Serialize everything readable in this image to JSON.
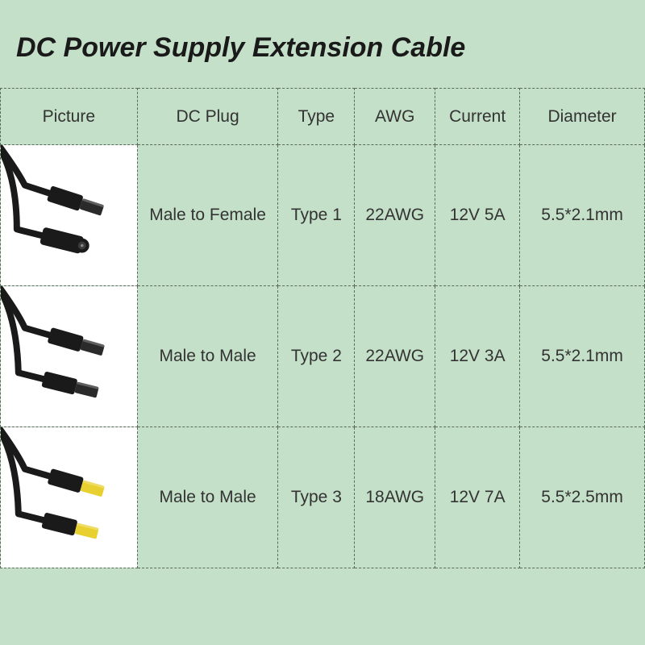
{
  "title": "DC Power Supply Extension Cable",
  "title_fontsize": 34,
  "background_color": "#c4e0c8",
  "border_color": "#5a6b5c",
  "text_color": "#333333",
  "header_fontsize": 21,
  "cell_fontsize": 21,
  "columns": {
    "picture": "Picture",
    "plug": "DC Plug",
    "type": "Type",
    "awg": "AWG",
    "current": "Current",
    "diameter": "Diameter"
  },
  "rows": [
    {
      "picture_type": "male-female",
      "plug": "Male to Female",
      "type": "Type 1",
      "awg": "22AWG",
      "current": "12V 5A",
      "diameter": "5.5*2.1mm",
      "tip_color": "#2a2a2a"
    },
    {
      "picture_type": "male-male",
      "plug": "Male to Male",
      "type": "Type 2",
      "awg": "22AWG",
      "current": "12V 3A",
      "diameter": "5.5*2.1mm",
      "tip_color": "#2a2a2a"
    },
    {
      "picture_type": "male-male",
      "plug": "Male to Male",
      "type": "Type 3",
      "awg": "18AWG",
      "current": "12V 7A",
      "diameter": "5.5*2.5mm",
      "tip_color": "#e8d030"
    }
  ]
}
